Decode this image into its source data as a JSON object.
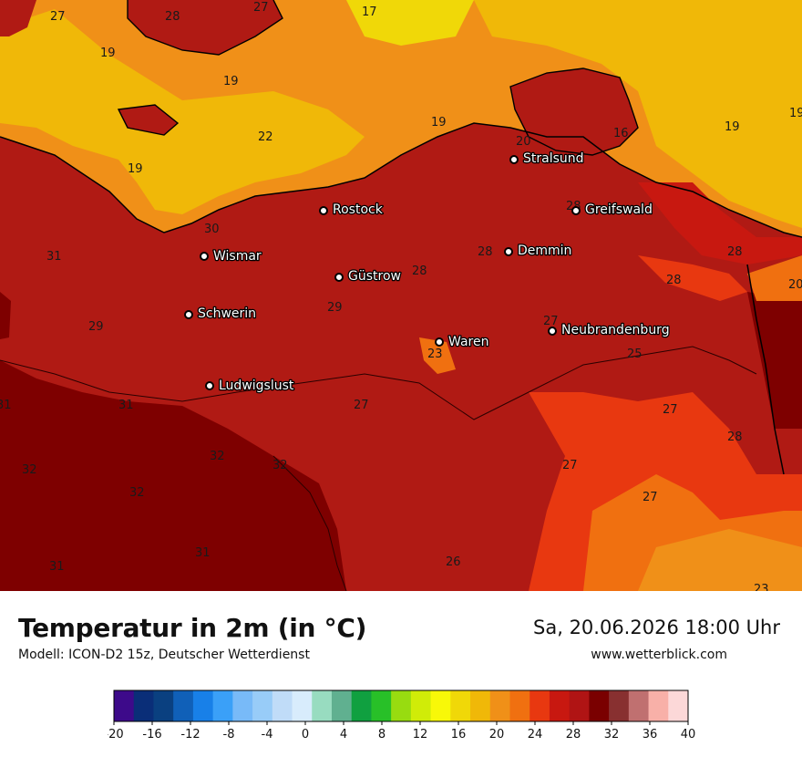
{
  "title": "Temperatur in 2m (in °C)",
  "model": "Modell: ICON-D2 15z, Deutscher Wetterdienst",
  "datetime": "Sa, 20.06.2026 18:00 Uhr",
  "website": "www.wetterblick.com",
  "cities": [
    {
      "name": "Stralsund"
    },
    {
      "name": "Rostock"
    },
    {
      "name": "Greifswald"
    },
    {
      "name": "Wismar"
    },
    {
      "name": "Demmin"
    },
    {
      "name": "Güstrow"
    },
    {
      "name": "Schwerin"
    },
    {
      "name": "Neubrandenburg"
    },
    {
      "name": "Waren"
    },
    {
      "name": "Ludwigslust"
    }
  ],
  "temperature_labels": [
    "27",
    "28",
    "27",
    "17",
    "19",
    "19",
    "22",
    "19",
    "19",
    "16",
    "20",
    "19",
    "19",
    "28",
    "30",
    "31",
    "28",
    "28",
    "28",
    "28",
    "20",
    "29",
    "29",
    "27",
    "23",
    "25",
    "31",
    "31",
    "27",
    "27",
    "28",
    "32",
    "32",
    "32",
    "32",
    "27",
    "27",
    "31",
    "31",
    "26",
    "23"
  ],
  "colorbar": {
    "tick_labels": [
      "-20",
      "-16",
      "-12",
      "-8",
      "-4",
      "0",
      "4",
      "8",
      "12",
      "16",
      "20",
      "24",
      "28",
      "32",
      "36",
      "40"
    ],
    "colors": [
      "#3d0a8a",
      "#0a2e78",
      "#0a4080",
      "#1060b8",
      "#1880e8",
      "#3aa0f8",
      "#78baf8",
      "#98ccf8",
      "#c0dcf8",
      "#d8ecfc",
      "#98dcc0",
      "#60b090",
      "#10a040",
      "#28c028",
      "#98dc10",
      "#d0ec08",
      "#f8f808",
      "#f0d808",
      "#f0b808",
      "#f09018",
      "#f07010",
      "#e83810",
      "#c81810",
      "#b01414",
      "#7a0000",
      "#883030",
      "#c07070",
      "#f8b0a8",
      "#fcd8d8"
    ]
  }
}
